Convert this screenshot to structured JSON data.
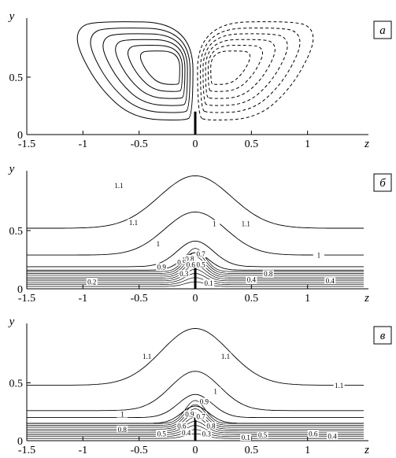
{
  "chart_data": [
    {
      "type": "contour",
      "panel_label": "а",
      "xlabel": "z",
      "ylabel": "y",
      "xlim": [
        -1.5,
        1.5
      ],
      "ylim": [
        0,
        1
      ],
      "x_ticks": [
        "-1.5",
        "-1",
        "-0.5",
        "0",
        "0.5",
        "1",
        "z"
      ],
      "y_ticks": [
        "0",
        "0.5",
        "y"
      ],
      "description_values": {
        "vortex_left_center": [
          -0.35,
          0.55
        ],
        "vortex_right_center": [
          0.35,
          0.55
        ],
        "left_style": "solid",
        "right_style": "dashed",
        "plate_height": 0.2
      },
      "contour_labels": []
    },
    {
      "type": "contour",
      "panel_label": "б",
      "xlabel": "z",
      "ylabel": "y",
      "xlim": [
        -1.5,
        1.5
      ],
      "ylim": [
        0,
        1
      ],
      "x_ticks": [
        "-1.5",
        "-1",
        "-0.5",
        "0",
        "0.5",
        "1",
        "z"
      ],
      "y_ticks": [
        "0",
        "0.5",
        "y"
      ],
      "contour_labels": [
        "1.1",
        "1.1",
        "1.1",
        "1",
        "1",
        "1",
        "0.9",
        "0.8",
        "0.8",
        "0.7",
        "0.9",
        "0.6",
        "0.5",
        "0.4",
        "0.2",
        "0.1",
        "0.3",
        "0.4"
      ]
    },
    {
      "type": "contour",
      "panel_label": "в",
      "xlabel": "z",
      "ylabel": "y",
      "xlim": [
        -1.5,
        1.5
      ],
      "ylim": [
        0,
        1
      ],
      "x_ticks": [
        "-1.5",
        "-1",
        "-0.5",
        "0",
        "0.5",
        "1",
        "z"
      ],
      "y_ticks": [
        "0",
        "0.5",
        "y"
      ],
      "contour_labels": [
        "1.1",
        "1.1",
        "1.1",
        "1",
        "1",
        "0.9",
        "0.8",
        "0.9",
        "0.7",
        "0.8",
        "0.6",
        "0.5",
        "0.4",
        "0.3",
        "0.5",
        "0.6",
        "0.4",
        "0.1"
      ]
    }
  ]
}
